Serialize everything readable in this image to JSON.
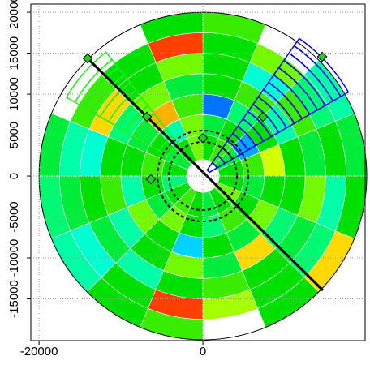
{
  "chart_data": {
    "type": "polar-heatmap",
    "xlim": [
      -21000,
      19800
    ],
    "ylim": [
      -20100,
      21000
    ],
    "xticks": [
      -20000,
      0
    ],
    "yticks": [
      -15000,
      -10000,
      -5000,
      0,
      5000,
      10000,
      15000,
      20000
    ],
    "grid": true,
    "r_edges": [
      2000,
      5000,
      7500,
      10000,
      12500,
      15000,
      17500,
      20000
    ],
    "sectors": 16,
    "colormap": [
      "#0000ff",
      "#0090ff",
      "#00ffff",
      "#00ff90",
      "#00e000",
      "#90ff00",
      "#ffff00",
      "#ffa000",
      "#ff0000"
    ],
    "values": [
      [
        0.5,
        0.45,
        0.55,
        0.5,
        0.6,
        0.5,
        0.45,
        0.5,
        0.4,
        0.5,
        0.55,
        0.5,
        0.45,
        0.5,
        0.6,
        0.5
      ],
      [
        0.55,
        0.15,
        0.5,
        0.45,
        0.6,
        0.35,
        0.5,
        0.55,
        0.5,
        0.45,
        0.6,
        0.5,
        0.4,
        0.55,
        0.5,
        0.45
      ],
      [
        0.7,
        0.5,
        0.4,
        0.1,
        0.55,
        0.85,
        0.45,
        0.5,
        0.35,
        0.6,
        0.5,
        0.2,
        0.5,
        0.45,
        0.6,
        0.5
      ],
      [
        0.5,
        0.35,
        0.55,
        0.5,
        0.45,
        0.6,
        0.4,
        0.5,
        0.55,
        0.35,
        0.5,
        0.6,
        0.45,
        0.8,
        0.4,
        0.5
      ],
      [
        0.45,
        0.55,
        0.3,
        0.5,
        0.6,
        0.5,
        0.8,
        0.3,
        0.5,
        0.45,
        0.35,
        0.5,
        0.55,
        0.5,
        0.45,
        0.6
      ],
      [
        0.5,
        0.4,
        0.6,
        0.5,
        0.95,
        0.5,
        0.55,
        0.35,
        0.45,
        0.3,
        0.5,
        0.95,
        0.65,
        0.5,
        0.4,
        0.35
      ],
      [
        0.45,
        0.35,
        null,
        0.55,
        0.5,
        null,
        null,
        0.45,
        0.4,
        0.35,
        0.5,
        0.55,
        null,
        0.5,
        0.8,
        0.5
      ]
    ]
  }
}
